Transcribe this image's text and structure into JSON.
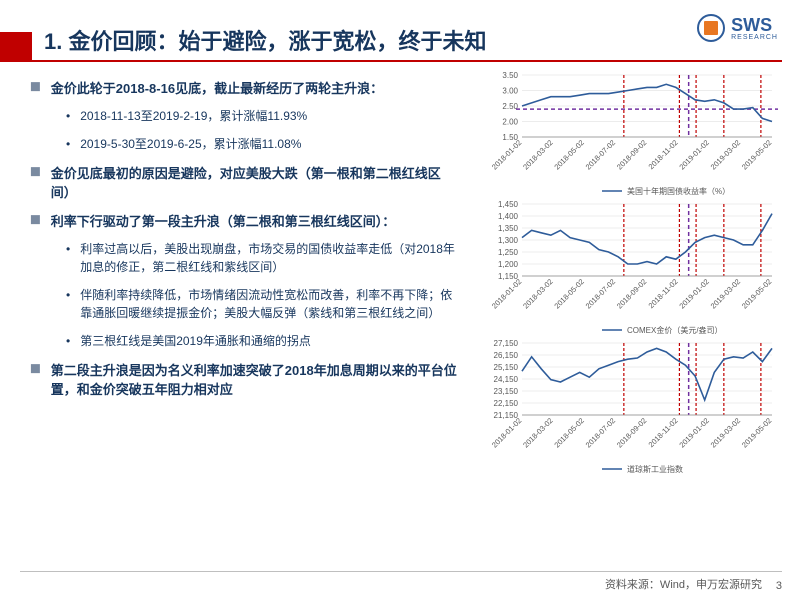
{
  "header": {
    "title": "1. 金价回顾：始于避险，涨于宽松，终于未知",
    "logo_main": "SWS",
    "logo_sub": "RESEARCH"
  },
  "bullets": [
    {
      "level": 1,
      "text": "金价此轮于2018-8-16见底，截止最新经历了两轮主升浪："
    },
    {
      "level": 2,
      "text": "2018-11-13至2019-2-19，累计涨幅11.93%"
    },
    {
      "level": 2,
      "text": "2019-5-30至2019-6-25，累计涨幅11.08%"
    },
    {
      "level": 1,
      "text": "金价见底最初的原因是避险，对应美股大跌（第一根和第二根红线区间）"
    },
    {
      "level": 1,
      "text": "利率下行驱动了第一段主升浪（第二根和第三根红线区间）："
    },
    {
      "level": 2,
      "text": "利率过高以后，美股出现崩盘，市场交易的国债收益率走低（对2018年加息的修正，第二根红线和紫线区间）"
    },
    {
      "level": 2,
      "text": "伴随利率持续降低，市场情绪因流动性宽松而改善，利率不再下降；依靠通胀回暖继续提振金价；美股大幅反弹（紫线和第三根红线之间）"
    },
    {
      "level": 2,
      "text": "第三根红线是美国2019年通胀和通缩的拐点"
    },
    {
      "level": 1,
      "text": "第二段主升浪是因为名义利率加速突破了2018年加息周期以来的平台位置，和金价突破五年阻力相对应"
    }
  ],
  "charts": {
    "xaxis_labels": [
      "2018-01-02",
      "2018-03-02",
      "2018-05-02",
      "2018-07-02",
      "2018-09-02",
      "2018-11-02",
      "2019-01-02",
      "2019-03-02",
      "2019-05-02"
    ],
    "vertical_red": [
      110,
      170,
      188,
      218,
      258
    ],
    "vertical_purple": 180,
    "horizontal_purple_y": 0.55,
    "chart1": {
      "legend": "美国十年期国债收益率（%）",
      "ylim": [
        1.5,
        3.5
      ],
      "yticks": [
        "1.50",
        "2.00",
        "2.50",
        "3.00",
        "3.50"
      ],
      "color": "#2e5c9a",
      "data": [
        2.5,
        2.6,
        2.7,
        2.8,
        2.8,
        2.8,
        2.85,
        2.9,
        2.9,
        2.9,
        2.95,
        3.0,
        3.05,
        3.1,
        3.1,
        3.2,
        3.1,
        2.9,
        2.7,
        2.65,
        2.7,
        2.6,
        2.4,
        2.4,
        2.45,
        2.1,
        2.0
      ]
    },
    "chart2": {
      "legend": "COMEX金价（美元/盎司）",
      "ylim": [
        1150,
        1450
      ],
      "yticks": [
        "1,150",
        "1,200",
        "1,250",
        "1,300",
        "1,350",
        "1,400",
        "1,450"
      ],
      "color": "#2e5c9a",
      "data": [
        1310,
        1340,
        1330,
        1320,
        1340,
        1310,
        1300,
        1290,
        1260,
        1250,
        1230,
        1200,
        1200,
        1210,
        1200,
        1230,
        1220,
        1250,
        1290,
        1310,
        1320,
        1310,
        1300,
        1280,
        1280,
        1340,
        1410
      ]
    },
    "chart3": {
      "legend": "道琼斯工业指数",
      "ylim": [
        21150,
        27150
      ],
      "yticks": [
        "21,150",
        "22,150",
        "23,150",
        "24,150",
        "25,150",
        "26,150",
        "27,150"
      ],
      "color": "#2e5c9a",
      "data": [
        24800,
        26000,
        25000,
        24100,
        23900,
        24300,
        24700,
        24300,
        25000,
        25300,
        25600,
        25800,
        25900,
        26400,
        26700,
        26400,
        25800,
        25300,
        24400,
        22400,
        24700,
        25800,
        26000,
        25900,
        26400,
        25600,
        26700
      ]
    }
  },
  "footer": {
    "source": "资料来源：Wind，申万宏源研究",
    "page": "3"
  }
}
